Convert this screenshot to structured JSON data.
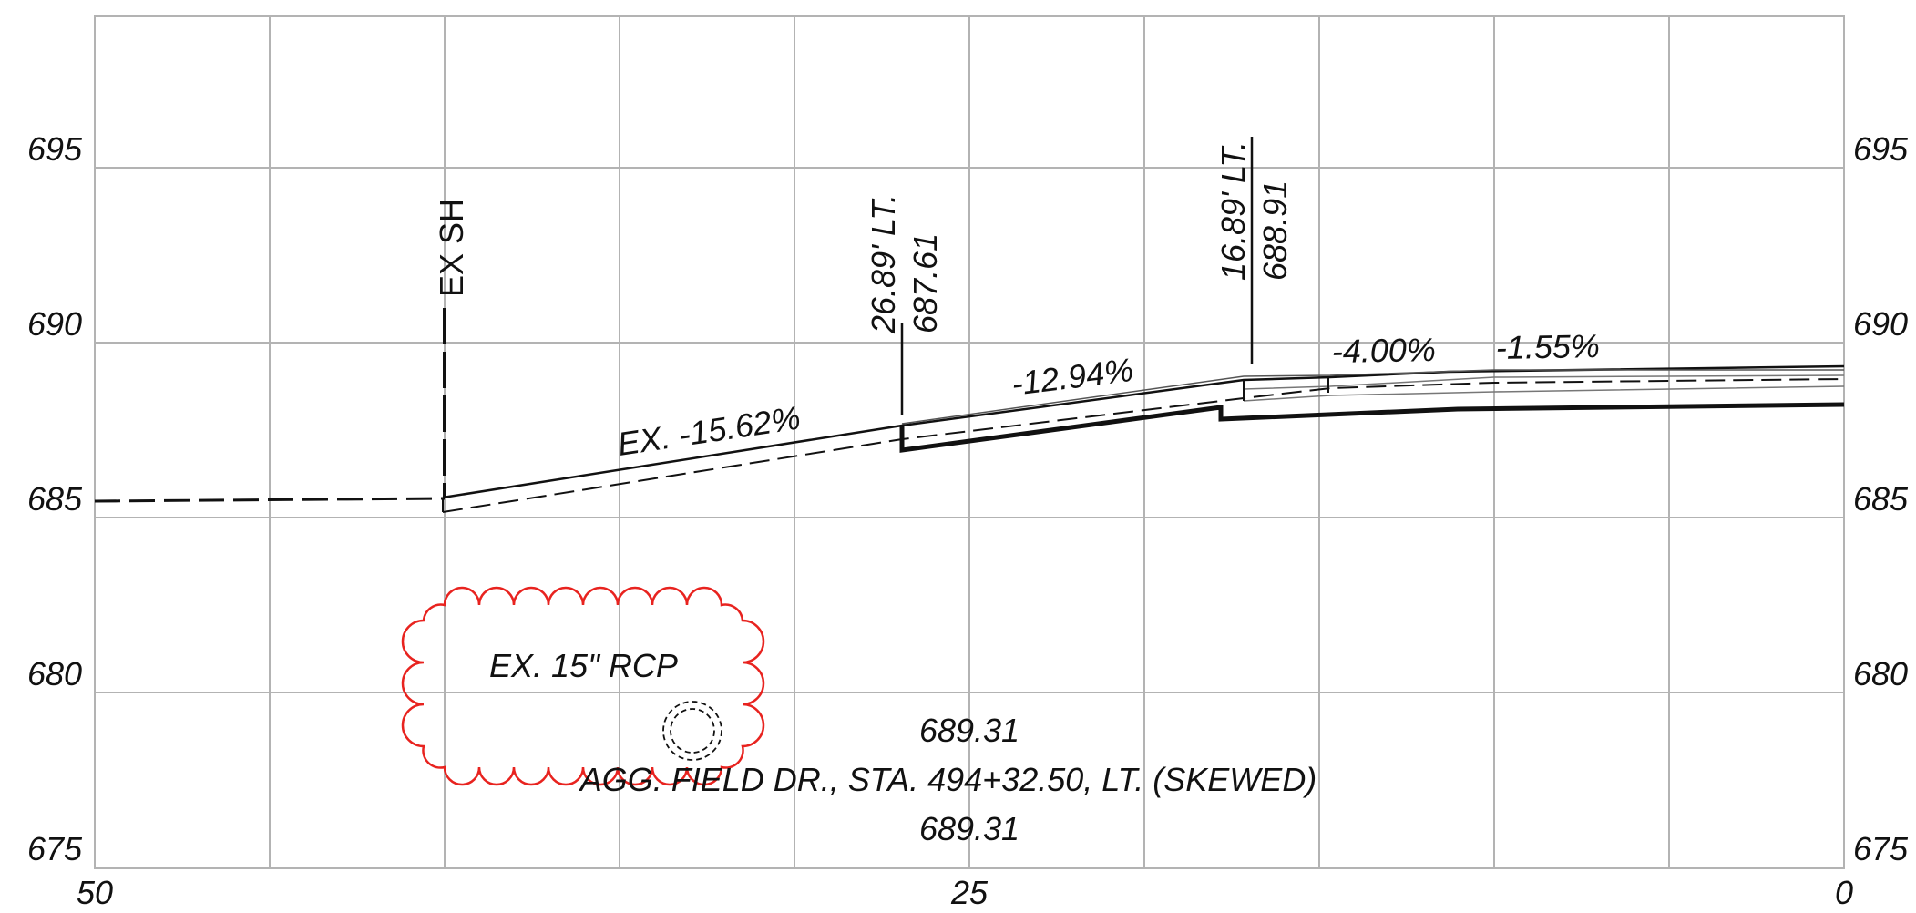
{
  "y_axis_labels_left": [
    "695",
    "690",
    "685",
    "680",
    "675"
  ],
  "y_axis_labels_right": [
    "695",
    "690",
    "685",
    "680",
    "675"
  ],
  "x_axis_labels": [
    "50",
    "25",
    "0"
  ],
  "callouts": {
    "ex_sh": "EX SH",
    "offset_left": "26.89' LT.",
    "elev_left": "687.61",
    "offset_right": "16.89' LT.",
    "elev_right": "688.91"
  },
  "grades": {
    "ex": "EX. -15.62%",
    "g1": "-12.94%",
    "g2": "-4.00%",
    "g3": "-1.55%"
  },
  "pipe_label": "EX. 15\" RCP",
  "section": {
    "elev_top": "689.31",
    "title": "AGG. FIELD DR., STA. 494+32.50, LT. (SKEWED)",
    "elev_bottom": "689.31"
  },
  "colors": {
    "grid": "#b3b3b3",
    "line": "#111111",
    "revision_cloud": "#e8231f"
  }
}
